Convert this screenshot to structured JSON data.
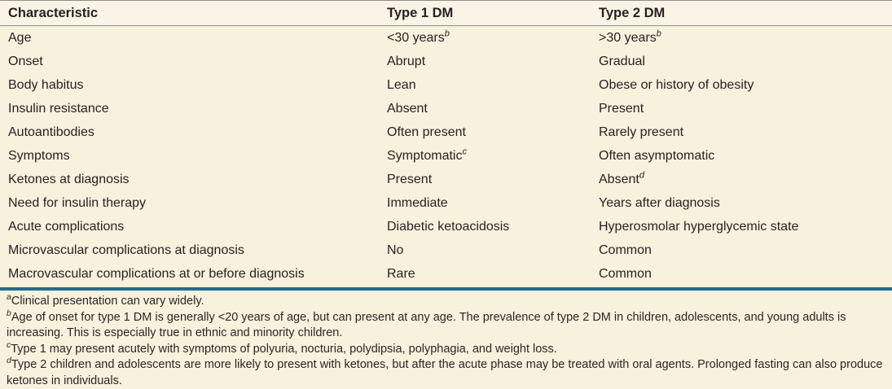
{
  "table": {
    "columns": [
      {
        "label": "Characteristic"
      },
      {
        "label": "Type 1 DM"
      },
      {
        "label": "Type 2 DM"
      }
    ],
    "rows": [
      {
        "characteristic": "Age",
        "type1": {
          "text": "<30 years",
          "sup": "b"
        },
        "type2": {
          "text": ">30 years",
          "sup": "b"
        }
      },
      {
        "characteristic": "Onset",
        "type1": {
          "text": "Abrupt"
        },
        "type2": {
          "text": "Gradual"
        }
      },
      {
        "characteristic": "Body habitus",
        "type1": {
          "text": "Lean"
        },
        "type2": {
          "text": "Obese or history of obesity"
        }
      },
      {
        "characteristic": "Insulin resistance",
        "type1": {
          "text": "Absent"
        },
        "type2": {
          "text": "Present"
        }
      },
      {
        "characteristic": "Autoantibodies",
        "type1": {
          "text": "Often present"
        },
        "type2": {
          "text": "Rarely present"
        }
      },
      {
        "characteristic": "Symptoms",
        "type1": {
          "text": "Symptomatic",
          "sup": "c"
        },
        "type2": {
          "text": "Often asymptomatic"
        }
      },
      {
        "characteristic": "Ketones at diagnosis",
        "type1": {
          "text": "Present"
        },
        "type2": {
          "text": "Absent",
          "sup": "d"
        }
      },
      {
        "characteristic": "Need for insulin therapy",
        "type1": {
          "text": "Immediate"
        },
        "type2": {
          "text": "Years after diagnosis"
        }
      },
      {
        "characteristic": "Acute complications",
        "type1": {
          "text": "Diabetic ketoacidosis"
        },
        "type2": {
          "text": "Hyperosmolar hyperglycemic state"
        }
      },
      {
        "characteristic": "Microvascular complications at diagnosis",
        "type1": {
          "text": "No"
        },
        "type2": {
          "text": "Common"
        }
      },
      {
        "characteristic": "Macrovascular complications at or before diagnosis",
        "type1": {
          "text": "Rare"
        },
        "type2": {
          "text": "Common"
        }
      }
    ]
  },
  "footnotes": [
    {
      "label": "a",
      "text": "Clinical presentation can vary widely."
    },
    {
      "label": "b",
      "text": "Age of onset for type 1 DM is generally <20 years of age, but can present at any age. The prevalence of type 2 DM in children, adolescents, and young adults is increasing. This is especially true in ethnic and minority children."
    },
    {
      "label": "c",
      "text": "Type 1 may present acutely with symptoms of polyuria, nocturia, polydipsia, polyphagia, and weight loss."
    },
    {
      "label": "d",
      "text": "Type 2 children and adolescents are more likely to present with ketones, but after the acute phase may be treated with oral agents. Prolonged fasting can also produce ketones in individuals."
    }
  ],
  "colors": {
    "background": "#f8f1de",
    "header_background": "#faf4e6",
    "hairline_gray": "#8f8d86",
    "rule_teal": "#1e6e8c",
    "text": "#272221"
  }
}
